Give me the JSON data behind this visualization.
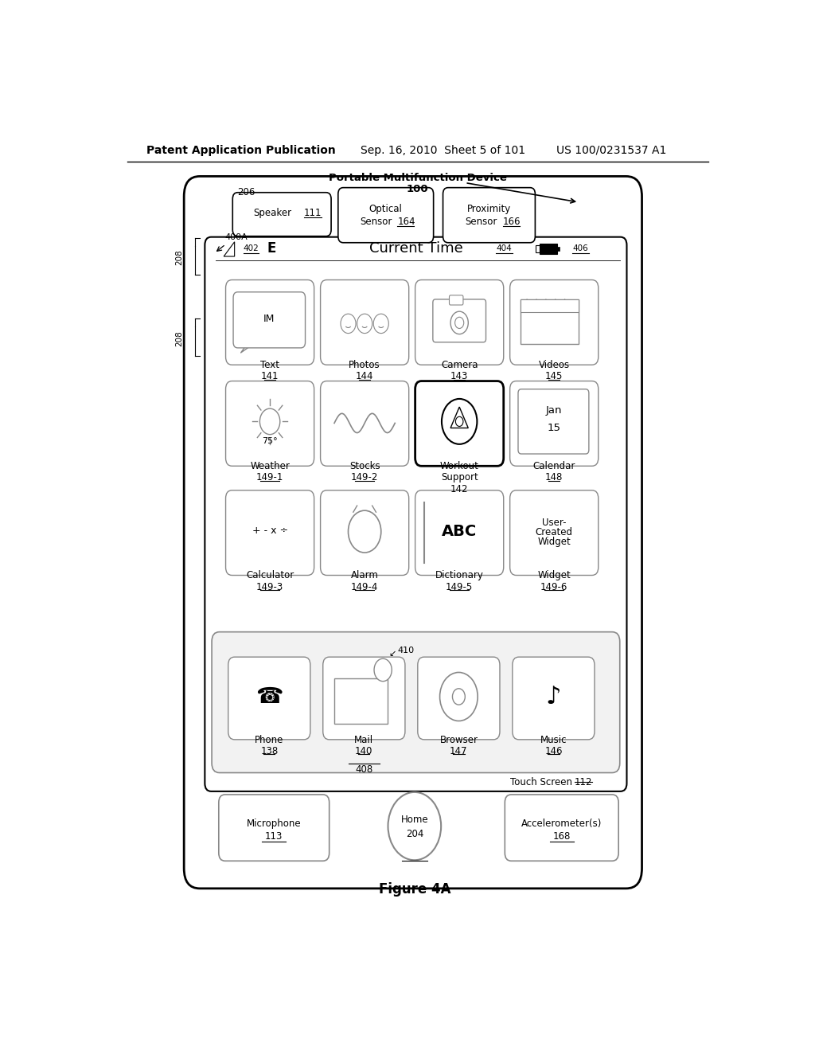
{
  "bg_color": "#ffffff",
  "text_color": "#000000",
  "header_line1": "Patent Application Publication",
  "header_date": "Sep. 16, 2010  Sheet 5 of 101",
  "header_patent": "US 100/0231537 A1",
  "figure_label": "Figure 4A",
  "device_label": "Portable Multifunction Device",
  "device_num": "100"
}
